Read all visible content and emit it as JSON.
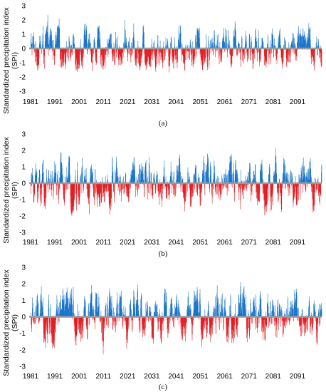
{
  "colors": {
    "positive": "#1a74c9",
    "negative": "#e31e24",
    "zero_line": "#9a9a9a"
  },
  "y_label_line1": "Standardized precipitation index",
  "y_label_line2": "(SPI)",
  "chart_data": [
    {
      "type": "bar",
      "caption": "(a)",
      "ylabel": "Standardized precipitation index (SPI)",
      "ylim": [
        -3,
        3
      ],
      "yticks": [
        "3",
        "2",
        "1",
        "0",
        "-1",
        "-2",
        "-3"
      ],
      "xticks": [
        "1981",
        "1991",
        "2001",
        "2011",
        "2021",
        "2031",
        "2041",
        "2051",
        "2061",
        "2071",
        "2081",
        "2091"
      ],
      "x_range": [
        1981,
        2100
      ],
      "bars_per_year": 12,
      "series": [
        {
          "values": [
            1.75,
            -1.35,
            1.9,
            -1.2,
            1.55,
            -1.6,
            1.7,
            -1.5,
            2.0,
            -1.65,
            1.8,
            -1.45,
            2.1,
            -1.55,
            1.95,
            -1.6,
            2.45,
            -1.7,
            2.3,
            -1.5,
            2.05,
            -1.55,
            2.3,
            -1.65,
            1.9,
            -1.6
          ]
        }
      ]
    },
    {
      "type": "bar",
      "caption": "(b)",
      "ylabel": "Standardized precipitation index (SPI)",
      "ylim": [
        -3,
        3
      ],
      "yticks": [
        "3",
        "2",
        "1",
        "0",
        "-1",
        "-2",
        "-3"
      ],
      "xticks": [
        "1981",
        "1991",
        "2001",
        "2011",
        "2021",
        "2031",
        "2041",
        "2051",
        "2061",
        "2071",
        "2081",
        "2091"
      ],
      "x_range": [
        1981,
        2100
      ],
      "bars_per_year": 12,
      "series": [
        {
          "values": [
            2.2,
            -1.3,
            1.6,
            -2.1,
            1.4,
            -1.1,
            2.0,
            -1.2,
            1.9,
            -1.8,
            1.4,
            -1.9,
            1.3,
            -1.5,
            1.5,
            -1.6,
            2.4,
            -1.5,
            2.0,
            -1.7,
            1.8,
            -1.6,
            1.9,
            -1.8,
            1.8,
            -2.0
          ]
        }
      ]
    },
    {
      "type": "bar",
      "caption": "(c)",
      "ylabel": "Standardized precipitation index (SPI)",
      "ylim": [
        -3,
        3
      ],
      "yticks": [
        "3",
        "2",
        "1",
        "0",
        "-1",
        "-2",
        "-3"
      ],
      "xticks": [
        "1981",
        "1991",
        "2001",
        "2011",
        "2021",
        "2031",
        "2041",
        "2051",
        "2061",
        "2071",
        "2081",
        "2091"
      ],
      "x_range": [
        1981,
        2100
      ],
      "bars_per_year": 12,
      "series": [
        {
          "values": [
            2.3,
            -2.4,
            1.4,
            -2.2,
            1.3,
            -1.4,
            1.9,
            -1.3,
            1.9,
            -2.0,
            1.6,
            -1.8,
            1.7,
            -2.1,
            1.8,
            -1.6,
            2.4,
            -1.6,
            2.1,
            -1.7,
            2.0,
            -1.8,
            1.8,
            -2.0,
            1.7,
            -2.2
          ]
        }
      ]
    }
  ]
}
